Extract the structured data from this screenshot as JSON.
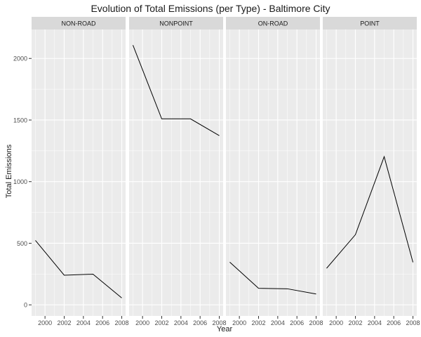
{
  "chart_data": {
    "type": "line",
    "title": "Evolution of Total Emissions (per Type) - Baltimore City",
    "xlabel": "Year",
    "ylabel": "Total Emissions",
    "xlim": [
      1998.6,
      2008.4
    ],
    "ylim": [
      -90,
      2235
    ],
    "x_ticks": [
      2000,
      2002,
      2004,
      2006,
      2008
    ],
    "y_ticks": [
      0,
      500,
      1000,
      1500,
      2000
    ],
    "grid": true,
    "x": [
      1999,
      2002,
      2005,
      2008
    ],
    "panels": [
      {
        "name": "NON-ROAD",
        "values": [
          522.9,
          240.8,
          248.9,
          55.8
        ]
      },
      {
        "name": "NONPOINT",
        "values": [
          2107.6,
          1509.5,
          1509.5,
          1373.2
        ]
      },
      {
        "name": "ON-ROAD",
        "values": [
          346.8,
          134.3,
          130.4,
          88.3
        ]
      },
      {
        "name": "POINT",
        "values": [
          296.8,
          569.3,
          1202.5,
          344.98
        ]
      }
    ]
  },
  "colors": {
    "panel_bg": "#ebebeb",
    "strip_bg": "#d9d9d9",
    "grid_major": "#ffffff",
    "line": "#000000",
    "text": "#1a1a1a",
    "tick_text": "#4d4d4d"
  }
}
